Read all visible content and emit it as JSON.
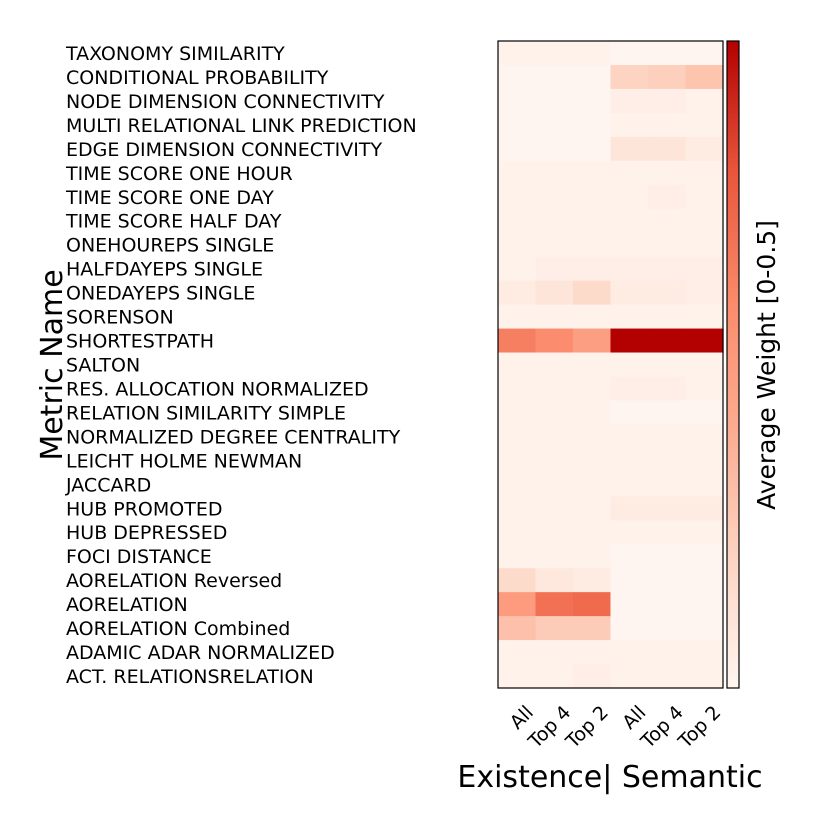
{
  "chart_data": {
    "type": "heatmap",
    "ylabel": "Metric Name",
    "xlabel": "Existence| Semantic",
    "colorbar_label": "Average Weight [0-0.5]",
    "vmin": 0,
    "vmax": 0.5,
    "colors": {
      "low": "#fff5f0",
      "mid": "#fb8a6a",
      "high": "#b30000"
    },
    "columns": [
      "All",
      "Top 4",
      "Top 2",
      "All",
      "Top 4",
      "Top 2"
    ],
    "column_groups": [
      "Existence",
      "Existence",
      "Existence",
      "Semantic",
      "Semantic",
      "Semantic"
    ],
    "rows": [
      "TAXONOMY SIMILARITY",
      "CONDITIONAL PROBABILITY",
      "NODE DIMENSION CONNECTIVITY",
      "MULTI RELATIONAL LINK PREDICTION",
      "EDGE DIMENSION CONNECTIVITY",
      "TIME SCORE ONE HOUR",
      "TIME SCORE ONE DAY",
      "TIME SCORE HALF DAY",
      "ONEHOUREPS SINGLE",
      "HALFDAYEPS SINGLE",
      "ONEDAYEPS SINGLE",
      "SORENSON",
      "SHORTESTPATH",
      "SALTON",
      "RES. ALLOCATION NORMALIZED",
      "RELATION SIMILARITY SIMPLE",
      "NORMALIZED DEGREE CENTRALITY",
      "LEICHT HOLME NEWMAN",
      "JACCARD",
      "HUB PROMOTED",
      "HUB DEPRESSED",
      "FOCI DISTANCE",
      "AORELATION Reversed",
      "AORELATION",
      "AORELATION Combined",
      "ADAMIC ADAR NORMALIZED",
      "ACT. RELATIONSRELATION"
    ],
    "values": [
      [
        0.01,
        0.01,
        0.01,
        0.0,
        0.0,
        0.0
      ],
      [
        0.0,
        0.0,
        0.0,
        0.1,
        0.11,
        0.14
      ],
      [
        0.0,
        0.0,
        0.0,
        0.02,
        0.02,
        0.01
      ],
      [
        0.0,
        0.0,
        0.0,
        0.01,
        0.01,
        0.01
      ],
      [
        0.0,
        0.0,
        0.0,
        0.05,
        0.05,
        0.03
      ],
      [
        0.01,
        0.01,
        0.01,
        0.01,
        0.01,
        0.01
      ],
      [
        0.01,
        0.01,
        0.01,
        0.01,
        0.02,
        0.01
      ],
      [
        0.01,
        0.01,
        0.01,
        0.01,
        0.01,
        0.01
      ],
      [
        0.01,
        0.01,
        0.01,
        0.01,
        0.01,
        0.01
      ],
      [
        0.01,
        0.02,
        0.02,
        0.02,
        0.02,
        0.02
      ],
      [
        0.03,
        0.05,
        0.08,
        0.03,
        0.03,
        0.02
      ],
      [
        0.01,
        0.01,
        0.01,
        0.01,
        0.01,
        0.01
      ],
      [
        0.32,
        0.29,
        0.24,
        0.5,
        0.5,
        0.5
      ],
      [
        0.01,
        0.01,
        0.01,
        0.01,
        0.01,
        0.01
      ],
      [
        0.01,
        0.01,
        0.01,
        0.02,
        0.02,
        0.01
      ],
      [
        0.01,
        0.01,
        0.01,
        0.0,
        0.0,
        0.0
      ],
      [
        0.01,
        0.01,
        0.01,
        0.01,
        0.01,
        0.01
      ],
      [
        0.01,
        0.01,
        0.01,
        0.01,
        0.01,
        0.01
      ],
      [
        0.01,
        0.01,
        0.01,
        0.01,
        0.01,
        0.01
      ],
      [
        0.01,
        0.01,
        0.01,
        0.03,
        0.03,
        0.03
      ],
      [
        0.01,
        0.01,
        0.01,
        0.01,
        0.01,
        0.01
      ],
      [
        0.01,
        0.01,
        0.01,
        0.0,
        0.0,
        0.0
      ],
      [
        0.08,
        0.04,
        0.03,
        0.0,
        0.0,
        0.0
      ],
      [
        0.25,
        0.35,
        0.36,
        0.0,
        0.0,
        0.0
      ],
      [
        0.15,
        0.12,
        0.12,
        0.0,
        0.0,
        0.0
      ],
      [
        0.01,
        0.01,
        0.01,
        0.01,
        0.01,
        0.01
      ],
      [
        0.01,
        0.01,
        0.02,
        0.01,
        0.01,
        0.01
      ]
    ]
  }
}
